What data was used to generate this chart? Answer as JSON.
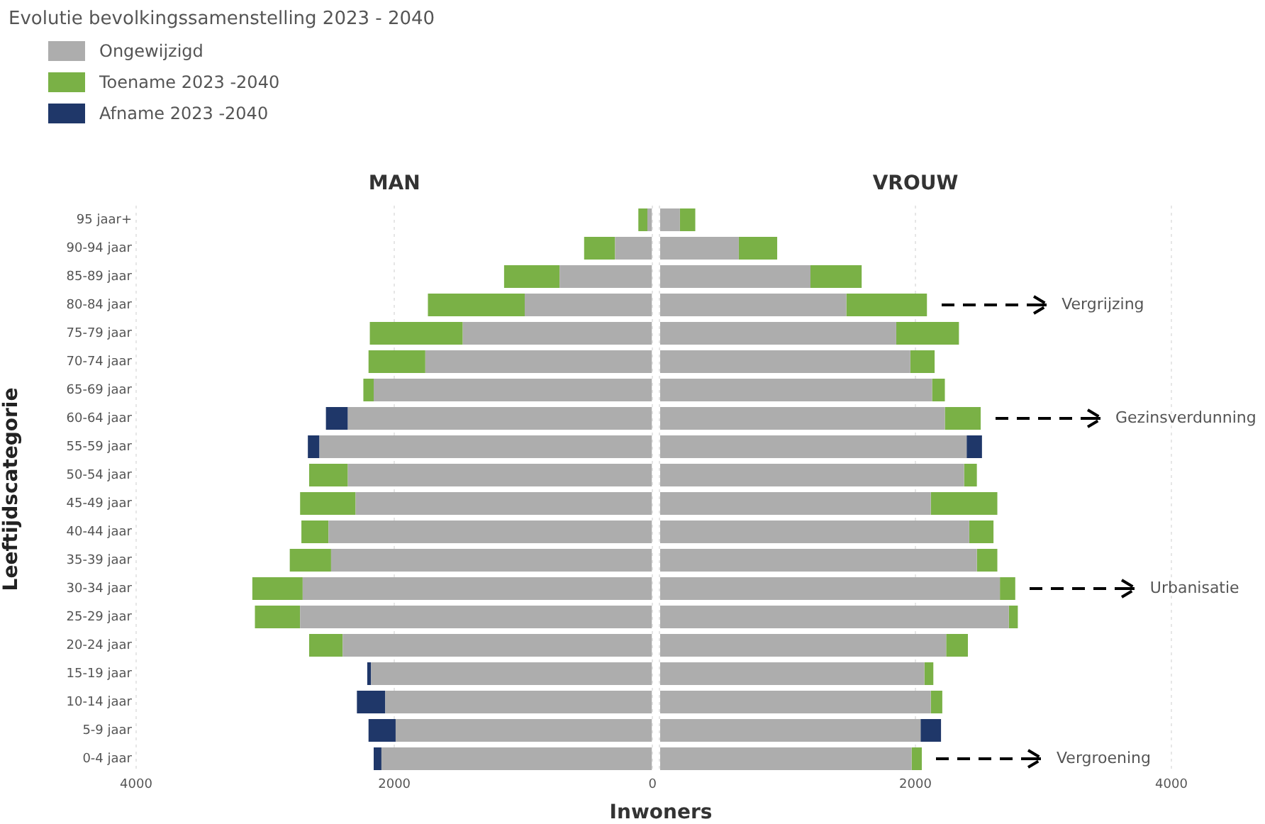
{
  "chart_data": [
    {
      "type": "bar",
      "orientation": "horizontal",
      "stacked": true,
      "title": "MAN",
      "xlabel": "Inwoners",
      "ylabel": "Leeftijdscategorie",
      "legend": "top left",
      "legend_title": "Evolutie bevolkingssamenstelling 2023 - 2040",
      "grid": "x",
      "categories": [
        "95 jaar+",
        "90-94 jaar",
        "85-89 jaar",
        "80-84 jaar",
        "75-79 jaar",
        "70-74 jaar",
        "65-69 jaar",
        "60-64 jaar",
        "55-59 jaar",
        "50-54 jaar",
        "45-49 jaar",
        "40-44 jaar",
        "35-39 jaar",
        "30-34 jaar",
        "25-29 jaar",
        "20-24 jaar",
        "15-19 jaar",
        "10-14 jaar",
        "5-9 jaar",
        "0-4 jaar"
      ],
      "xlim": [
        4000,
        0
      ],
      "xticks": [
        4000,
        2000,
        0
      ],
      "series": [
        {
          "name": "Ongewijzigd",
          "color": "#adadad",
          "values": [
            40,
            290,
            720,
            990,
            1470,
            1760,
            2160,
            2360,
            2580,
            2360,
            2300,
            2510,
            2490,
            2710,
            2730,
            2400,
            2180,
            2070,
            1990,
            2100
          ]
        },
        {
          "name": "Toename 2023 -2040",
          "color": "#7ab146",
          "values": [
            70,
            240,
            430,
            750,
            720,
            440,
            80,
            null,
            null,
            300,
            430,
            210,
            320,
            390,
            350,
            260,
            null,
            null,
            null,
            null
          ]
        },
        {
          "name": "Afname 2023 -2040",
          "color": "#1f3769",
          "values": [
            null,
            null,
            null,
            null,
            null,
            null,
            null,
            170,
            90,
            null,
            null,
            null,
            null,
            null,
            null,
            null,
            30,
            220,
            210,
            60
          ]
        }
      ]
    },
    {
      "type": "bar",
      "orientation": "horizontal",
      "stacked": true,
      "title": "VROUW",
      "grid": "x",
      "tick_labels": "x",
      "categories": [
        null,
        null,
        null,
        null,
        null,
        null,
        null,
        null,
        null,
        null,
        null,
        null,
        null,
        null,
        null,
        null,
        null,
        null,
        null,
        null
      ],
      "xlim": [
        0,
        4000
      ],
      "xticks": [
        {
          "value": 0,
          "label": null
        },
        2000,
        4000
      ],
      "series": [
        {
          "color": "#adadad",
          "values": [
            160,
            620,
            1180,
            1460,
            1850,
            1960,
            2130,
            2230,
            2400,
            2380,
            2120,
            2420,
            2480,
            2660,
            2730,
            2240,
            2070,
            2120,
            2040,
            1970
          ]
        },
        {
          "color": "#7ab146",
          "values": [
            120,
            300,
            400,
            630,
            490,
            190,
            100,
            280,
            null,
            100,
            520,
            190,
            160,
            120,
            70,
            170,
            70,
            90,
            null,
            80
          ]
        },
        {
          "color": "#1f3769",
          "values": [
            null,
            null,
            null,
            null,
            null,
            null,
            null,
            null,
            120,
            null,
            null,
            null,
            null,
            null,
            null,
            null,
            null,
            null,
            160,
            null
          ]
        }
      ],
      "annotations": [
        "Vergrijzing",
        "Gezinsverdunning",
        "Urbanisatie",
        "Vergroening"
      ]
    }
  ]
}
